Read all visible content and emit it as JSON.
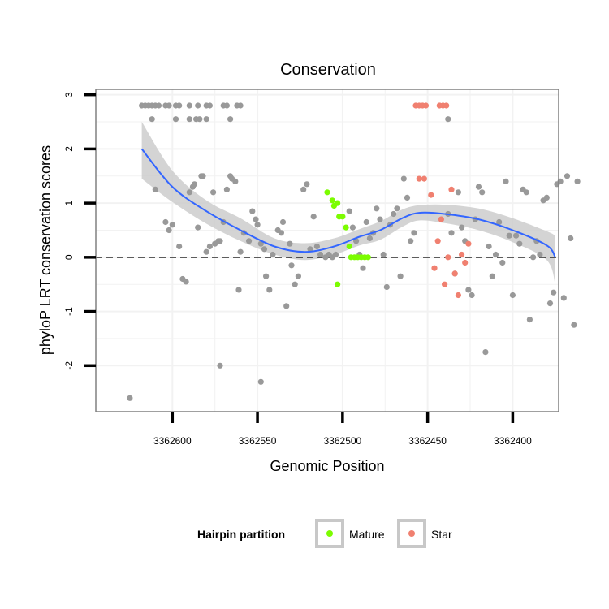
{
  "chart_data": {
    "type": "scatter",
    "title": "Conservation",
    "xlabel": "Genomic Position",
    "ylabel": "phyloP LRT conservation scores",
    "x_reversed": true,
    "xlim": [
      3362373,
      3362645
    ],
    "ylim": [
      -2.85,
      3.1
    ],
    "x_ticks": [
      3362600,
      3362550,
      3362500,
      3362450,
      3362400
    ],
    "x_tick_labels": [
      "3362600",
      "3362550",
      "3362500",
      "3362450",
      "3362400"
    ],
    "y_ticks": [
      3,
      2,
      1,
      0,
      -1,
      -2
    ],
    "y_tick_labels": [
      "3",
      "2",
      "1",
      "0",
      "-1",
      "-2"
    ],
    "reference_line_y": 0,
    "colors": {
      "Other": "#999999",
      "Mature": "#7CFC00",
      "Star": "#F08070",
      "smooth": "#3366FF",
      "band": "#cccccc",
      "panel_border": "#808080",
      "grid": "#f2f2f2"
    },
    "legend": {
      "title": "Hairpin partition",
      "position": "bottom",
      "entries": [
        {
          "name": "Mature",
          "color": "#7CFC00"
        },
        {
          "name": "Star",
          "color": "#F08070"
        }
      ]
    },
    "smooth": {
      "x": [
        3362618,
        3362600,
        3362580,
        3362560,
        3362540,
        3362522,
        3362505,
        3362490,
        3362478,
        3362465,
        3362455,
        3362440,
        3362420,
        3362400,
        3362380,
        3362375
      ],
      "y": [
        2.0,
        1.3,
        0.85,
        0.5,
        0.2,
        0.1,
        0.2,
        0.38,
        0.5,
        0.72,
        0.82,
        0.8,
        0.7,
        0.5,
        0.22,
        0.0
      ],
      "lo": [
        1.45,
        1.02,
        0.62,
        0.3,
        0.05,
        -0.05,
        0.05,
        0.22,
        0.32,
        0.56,
        0.68,
        0.63,
        0.5,
        0.28,
        -0.05,
        -0.5
      ],
      "hi": [
        2.5,
        1.6,
        1.05,
        0.72,
        0.35,
        0.26,
        0.35,
        0.52,
        0.66,
        0.88,
        0.96,
        0.97,
        0.9,
        0.72,
        0.48,
        0.4
      ]
    },
    "series": [
      {
        "name": "Other",
        "points": [
          [
            3362618,
            2.8
          ],
          [
            3362616,
            2.8
          ],
          [
            3362614,
            2.8
          ],
          [
            3362612,
            2.8
          ],
          [
            3362610,
            2.8
          ],
          [
            3362608,
            2.8
          ],
          [
            3362604,
            2.8
          ],
          [
            3362602,
            2.8
          ],
          [
            3362598,
            2.8
          ],
          [
            3362596,
            2.8
          ],
          [
            3362590,
            2.8
          ],
          [
            3362585,
            2.8
          ],
          [
            3362580,
            2.8
          ],
          [
            3362578,
            2.8
          ],
          [
            3362570,
            2.8
          ],
          [
            3362568,
            2.8
          ],
          [
            3362562,
            2.8
          ],
          [
            3362560,
            2.8
          ],
          [
            3362612,
            2.55
          ],
          [
            3362598,
            2.55
          ],
          [
            3362590,
            2.55
          ],
          [
            3362586,
            2.55
          ],
          [
            3362584,
            2.55
          ],
          [
            3362580,
            2.55
          ],
          [
            3362566,
            2.55
          ],
          [
            3362610,
            1.25
          ],
          [
            3362604,
            0.65
          ],
          [
            3362602,
            0.5
          ],
          [
            3362600,
            0.6
          ],
          [
            3362596,
            0.2
          ],
          [
            3362594,
            -0.4
          ],
          [
            3362592,
            -0.45
          ],
          [
            3362590,
            1.2
          ],
          [
            3362588,
            1.3
          ],
          [
            3362587,
            1.35
          ],
          [
            3362585,
            0.55
          ],
          [
            3362583,
            1.5
          ],
          [
            3362582,
            1.5
          ],
          [
            3362580,
            0.1
          ],
          [
            3362578,
            0.2
          ],
          [
            3362576,
            1.2
          ],
          [
            3362575,
            0.25
          ],
          [
            3362573,
            0.3
          ],
          [
            3362572,
            0.3
          ],
          [
            3362570,
            0.65
          ],
          [
            3362568,
            1.25
          ],
          [
            3362566,
            1.5
          ],
          [
            3362565,
            1.45
          ],
          [
            3362563,
            1.4
          ],
          [
            3362561,
            -0.6
          ],
          [
            3362560,
            0.1
          ],
          [
            3362558,
            0.45
          ],
          [
            3362555,
            0.3
          ],
          [
            3362553,
            0.85
          ],
          [
            3362551,
            0.7
          ],
          [
            3362550,
            0.6
          ],
          [
            3362548,
            0.25
          ],
          [
            3362546,
            0.15
          ],
          [
            3362545,
            -0.35
          ],
          [
            3362543,
            -0.6
          ],
          [
            3362541,
            0.05
          ],
          [
            3362538,
            0.5
          ],
          [
            3362536,
            0.45
          ],
          [
            3362535,
            0.65
          ],
          [
            3362533,
            -0.9
          ],
          [
            3362531,
            0.25
          ],
          [
            3362530,
            -0.15
          ],
          [
            3362528,
            -0.5
          ],
          [
            3362526,
            -0.35
          ],
          [
            3362523,
            1.25
          ],
          [
            3362521,
            1.35
          ],
          [
            3362519,
            0.15
          ],
          [
            3362517,
            0.75
          ],
          [
            3362515,
            0.2
          ],
          [
            3362513,
            0.05
          ],
          [
            3362510,
            0.0
          ],
          [
            3362508,
            0.05
          ],
          [
            3362506,
            0.0
          ],
          [
            3362504,
            0.05
          ],
          [
            3362496,
            0.85
          ],
          [
            3362494,
            0.55
          ],
          [
            3362492,
            0.3
          ],
          [
            3362490,
            0.05
          ],
          [
            3362488,
            -0.2
          ],
          [
            3362486,
            0.65
          ],
          [
            3362484,
            0.35
          ],
          [
            3362482,
            0.45
          ],
          [
            3362480,
            0.9
          ],
          [
            3362478,
            0.7
          ],
          [
            3362476,
            0.05
          ],
          [
            3362474,
            -0.55
          ],
          [
            3362472,
            0.6
          ],
          [
            3362470,
            0.8
          ],
          [
            3362468,
            0.9
          ],
          [
            3362466,
            -0.35
          ],
          [
            3362464,
            1.45
          ],
          [
            3362462,
            1.1
          ],
          [
            3362460,
            0.3
          ],
          [
            3362458,
            0.45
          ],
          [
            3362438,
            0.8
          ],
          [
            3362436,
            0.45
          ],
          [
            3362434,
            -0.3
          ],
          [
            3362432,
            1.2
          ],
          [
            3362430,
            0.55
          ],
          [
            3362428,
            0.3
          ],
          [
            3362426,
            -0.6
          ],
          [
            3362424,
            -0.7
          ],
          [
            3362422,
            0.7
          ],
          [
            3362420,
            1.3
          ],
          [
            3362418,
            1.2
          ],
          [
            3362416,
            -1.75
          ],
          [
            3362414,
            0.2
          ],
          [
            3362412,
            -0.35
          ],
          [
            3362410,
            0.05
          ],
          [
            3362408,
            0.65
          ],
          [
            3362406,
            -0.1
          ],
          [
            3362404,
            1.4
          ],
          [
            3362402,
            0.4
          ],
          [
            3362400,
            -0.7
          ],
          [
            3362398,
            0.4
          ],
          [
            3362396,
            0.25
          ],
          [
            3362394,
            1.25
          ],
          [
            3362392,
            1.2
          ],
          [
            3362390,
            -1.15
          ],
          [
            3362388,
            0.0
          ],
          [
            3362386,
            0.3
          ],
          [
            3362384,
            0.05
          ],
          [
            3362382,
            1.05
          ],
          [
            3362380,
            1.1
          ],
          [
            3362378,
            -0.85
          ],
          [
            3362376,
            -0.65
          ],
          [
            3362374,
            1.35
          ],
          [
            3362372,
            1.4
          ],
          [
            3362370,
            -0.75
          ],
          [
            3362368,
            1.5
          ],
          [
            3362366,
            0.35
          ],
          [
            3362364,
            -1.25
          ],
          [
            3362362,
            1.4
          ],
          [
            3362625,
            -2.6
          ],
          [
            3362572,
            -2.0
          ],
          [
            3362548,
            -2.3
          ],
          [
            3362438,
            2.55
          ]
        ]
      },
      {
        "name": "Mature",
        "points": [
          [
            3362509,
            1.2
          ],
          [
            3362506,
            1.05
          ],
          [
            3362505,
            0.95
          ],
          [
            3362503,
            1.0
          ],
          [
            3362502,
            0.75
          ],
          [
            3362500,
            0.75
          ],
          [
            3362498,
            0.55
          ],
          [
            3362496,
            0.2
          ],
          [
            3362495,
            0.0
          ],
          [
            3362493,
            0.0
          ],
          [
            3362491,
            0.0
          ],
          [
            3362489,
            0.0
          ],
          [
            3362487,
            0.0
          ],
          [
            3362485,
            0.0
          ],
          [
            3362503,
            -0.5
          ]
        ]
      },
      {
        "name": "Star",
        "points": [
          [
            3362457,
            2.8
          ],
          [
            3362455,
            2.8
          ],
          [
            3362453,
            2.8
          ],
          [
            3362451,
            2.8
          ],
          [
            3362443,
            2.8
          ],
          [
            3362441,
            2.8
          ],
          [
            3362439,
            2.8
          ],
          [
            3362455,
            1.45
          ],
          [
            3362452,
            1.45
          ],
          [
            3362448,
            1.15
          ],
          [
            3362446,
            -0.2
          ],
          [
            3362444,
            0.3
          ],
          [
            3362442,
            0.7
          ],
          [
            3362440,
            -0.5
          ],
          [
            3362438,
            0.0
          ],
          [
            3362436,
            1.25
          ],
          [
            3362434,
            -0.3
          ],
          [
            3362432,
            -0.7
          ],
          [
            3362430,
            0.05
          ],
          [
            3362428,
            -0.1
          ],
          [
            3362426,
            0.25
          ]
        ]
      }
    ]
  }
}
